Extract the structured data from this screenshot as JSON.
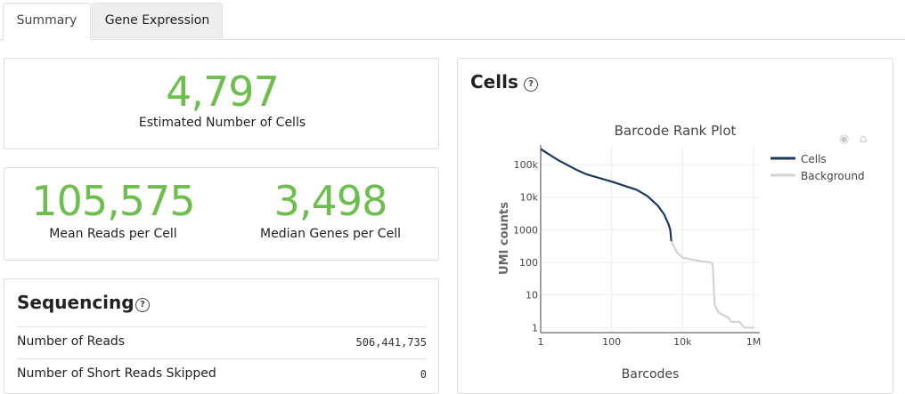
{
  "tabs": [
    {
      "label": "Summary",
      "active": true
    },
    {
      "label": "Gene Expression",
      "active": false
    }
  ],
  "cells_estimate": {
    "value": "4,797",
    "label": "Estimated Number of Cells"
  },
  "mean_reads": {
    "value": "105,575",
    "label": "Mean Reads per Cell"
  },
  "median_genes": {
    "value": "3,498",
    "label": "Median Genes per Cell"
  },
  "sequencing": {
    "title": "Sequencing",
    "help": "?",
    "rows": [
      {
        "label": "Number of Reads",
        "value": "506,441,735"
      },
      {
        "label": "Number of Short Reads Skipped",
        "value": "0"
      }
    ]
  },
  "cells_panel": {
    "title": "Cells",
    "help": "?"
  },
  "modebar": {
    "camera_icon": "camera-icon",
    "home_icon": "home-icon"
  },
  "colors": {
    "accent_green": "#6cbf4c",
    "cells": "#1b3a5c",
    "background": "#d3d3d3"
  },
  "chart_data": {
    "type": "line",
    "title": "Barcode Rank Plot",
    "xlabel": "Barcodes",
    "ylabel": "UMI counts",
    "x_scale": "log",
    "y_scale": "log",
    "xlim": [
      1,
      1500000
    ],
    "ylim": [
      0.7,
      400000
    ],
    "x_ticks": [
      {
        "value": 1,
        "label": "1"
      },
      {
        "value": 100,
        "label": "100"
      },
      {
        "value": 10000,
        "label": "10k"
      },
      {
        "value": 1000000,
        "label": "1M"
      }
    ],
    "y_ticks": [
      {
        "value": 1,
        "label": "1"
      },
      {
        "value": 10,
        "label": "10"
      },
      {
        "value": 100,
        "label": "100"
      },
      {
        "value": 1000,
        "label": "1000"
      },
      {
        "value": 10000,
        "label": "10k"
      },
      {
        "value": 100000,
        "label": "100k"
      }
    ],
    "legend_position": "top-right",
    "series": [
      {
        "name": "Cells",
        "color": "#1b3a5c",
        "x": [
          1,
          3,
          10,
          20,
          100,
          500,
          1000,
          2000,
          3000,
          4000,
          4500,
          4797
        ],
        "y": [
          300000,
          140000,
          70000,
          50000,
          30000,
          17000,
          11000,
          5500,
          3000,
          1500,
          1000,
          450
        ]
      },
      {
        "name": "Background",
        "color": "#d3d3d3",
        "x": [
          4797,
          7000,
          10000,
          30000,
          60000,
          70000,
          80000,
          100000,
          130000,
          200000,
          230000,
          300000,
          400000,
          550000,
          1000000
        ],
        "y": [
          450,
          200,
          140,
          110,
          100,
          90,
          5,
          3,
          2.5,
          2,
          1.5,
          1.5,
          1.5,
          1,
          1
        ]
      }
    ]
  }
}
